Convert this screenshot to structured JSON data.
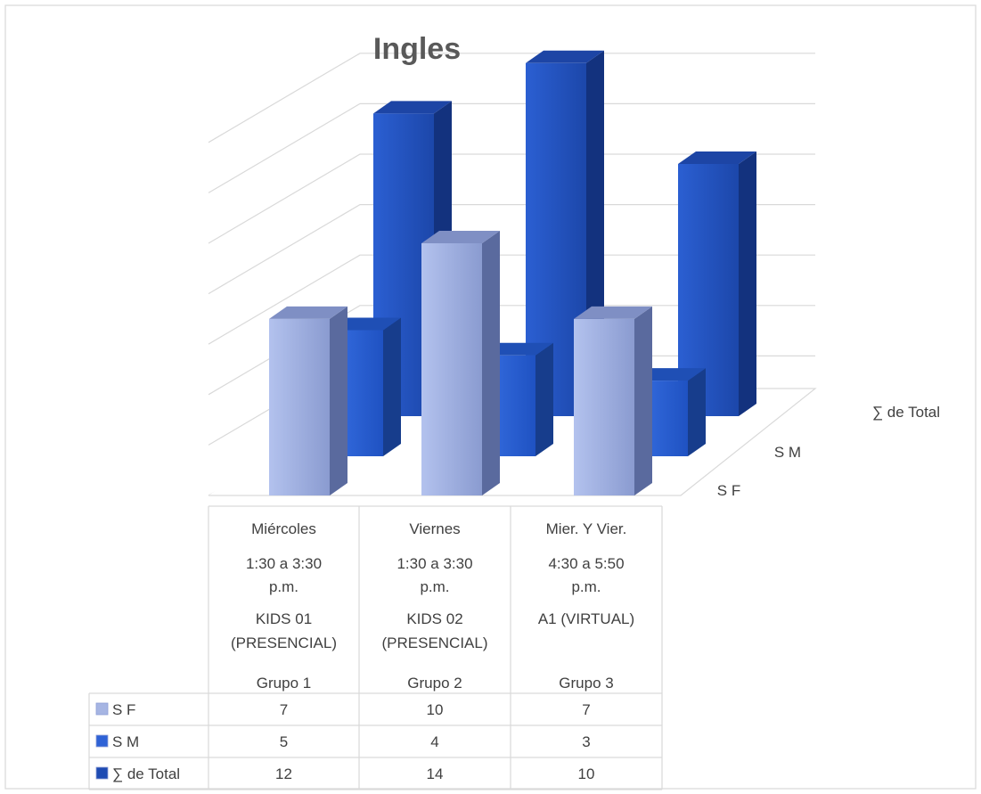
{
  "chart_data": {
    "type": "bar",
    "title": "Ingles",
    "categories": [
      [
        "Miércoles",
        "1:30 a 3:30",
        "p.m.",
        "KIDS 01",
        "(PRESENCIAL)",
        "Grupo 1"
      ],
      [
        "Viernes",
        "1:30 a 3:30",
        "p.m.",
        "KIDS 02",
        "(PRESENCIAL)",
        "Grupo 2"
      ],
      [
        "Mier. Y Vier.",
        "4:30 a 5:50",
        "p.m.",
        "A1 (VIRTUAL)",
        "",
        "Grupo 3"
      ]
    ],
    "series": [
      {
        "name": "S F",
        "values": [
          7,
          10,
          7
        ],
        "color": "#a6b5e3"
      },
      {
        "name": "S M",
        "values": [
          5,
          4,
          3
        ],
        "color": "#2e62d6"
      },
      {
        "name": "∑ de Total",
        "values": [
          12,
          14,
          10
        ],
        "color": "#1e4bb3"
      }
    ],
    "depth_axis_labels": [
      "∑ de Total",
      "S M",
      "S F"
    ],
    "data_table": true,
    "grid": true,
    "ylim": [
      0,
      16
    ]
  }
}
